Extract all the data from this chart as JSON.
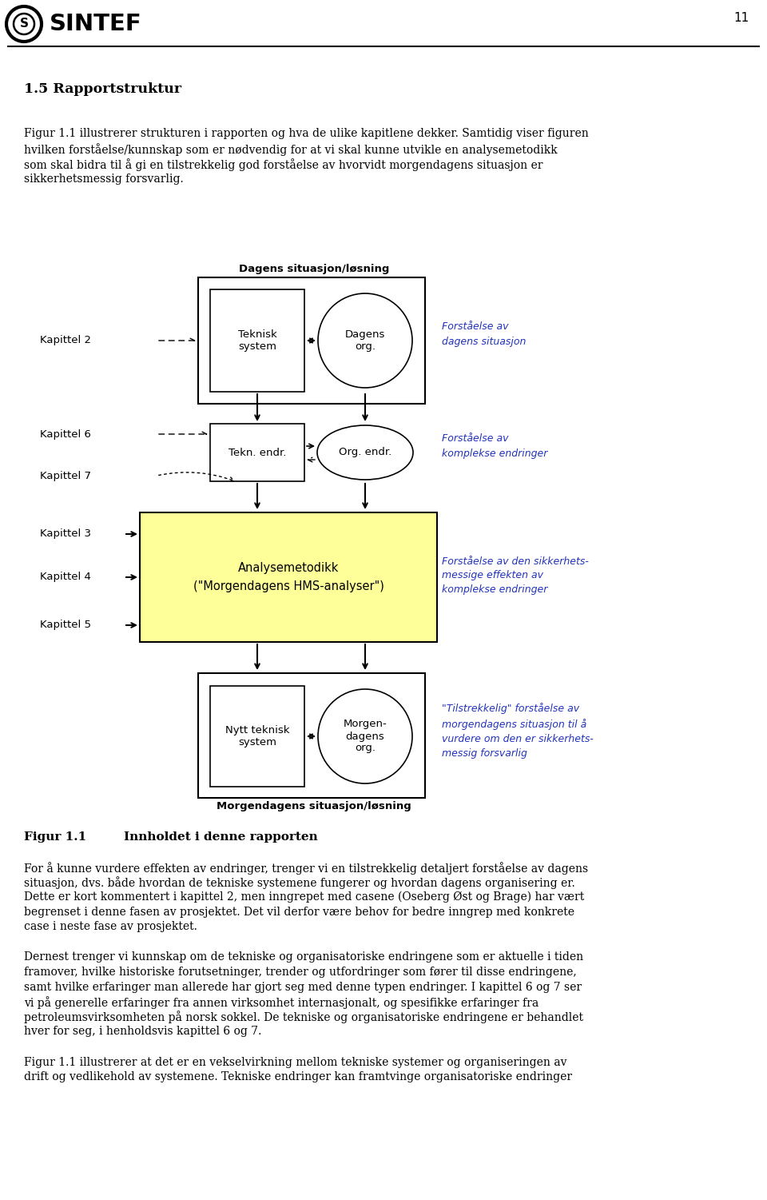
{
  "page_number": "11",
  "logo_text": "SINTEF",
  "section_title": "1.5 Rapportstruktur",
  "intro_line1": "Figur 1.1 illustrerer strukturen i rapporten og hva de ulike kapitlene dekker. Samtidig viser figuren",
  "intro_line2": "hvilken forståelse/kunnskap som er nødvendig for at vi skal kunne utvikle en analysemetodikk",
  "intro_line3": "som skal bidra til å gi en tilstrekkelig god forståelse av hvorvidt morgendagens situasjon er",
  "intro_line4": "sikkerhetsmessig forsvarlig.",
  "dagens_label": "Dagens situasjon/løsning",
  "morgendagens_label": "Morgendagens situasjon/løsning",
  "box1_text1": "Teknisk\nsystem",
  "box1_text2": "Dagens\norg.",
  "box2_text1": "Tekn. endr.",
  "box2_text2": "Org. endr.",
  "box3_text": "Analysemetodikk\n(\"Morgendagens HMS-analyser\")",
  "box4_text1": "Nytt teknisk\nsystem",
  "box4_text2": "Morgen-\ndagens\norg.",
  "kap2": "Kapittel 2",
  "kap3": "Kapittel 3",
  "kap4": "Kapittel 4",
  "kap5": "Kapittel 5",
  "kap6": "Kapittel 6",
  "kap7": "Kapittel 7",
  "label_right1": "Forståelse av\ndagens situasjon",
  "label_right2": "Forståelse av\nkomplekse endringer",
  "label_right3": "Forståelse av den sikkerhets-\nmessige effekten av\nkomplekse endringer",
  "label_right4": "\"Tilstrekkelig\" forståelse av\nmorgendagens situasjon til å\nvurdere om den er sikkerhets-\nmessig forsvarlig",
  "fig_caption_num": "Figur 1.1",
  "fig_caption_tab": "      ",
  "fig_caption_title": "Innholdet i denne rapporten",
  "body1_lines": [
    "For å kunne vurdere effekten av endringer, trenger vi en tilstrekkelig detaljert forståelse av dagens",
    "situasjon, dvs. både hvordan de tekniske systemene fungerer og hvordan dagens organisering er.",
    "Dette er kort kommentert i kapittel 2, men inngrepet med casene (Oseberg Øst og Brage) har vært",
    "begrenset i denne fasen av prosjektet. Det vil derfor være behov for bedre inngrep med konkrete",
    "case i neste fase av prosjektet."
  ],
  "body2_lines": [
    "Dernest trenger vi kunnskap om de tekniske og organisatoriske endringene som er aktuelle i tiden",
    "framover, hvilke historiske forutsetninger, trender og utfordringer som fører til disse endringene,",
    "samt hvilke erfaringer man allerede har gjort seg med denne typen endringer. I kapittel 6 og 7 ser",
    "vi på generelle erfaringer fra annen virksomhet internasjonalt, og spesifikke erfaringer fra",
    "petroleumsvirksomheten på norsk sokkel. De tekniske og organisatoriske endringene er behandlet",
    "hver for seg, i henholdsvis kapittel 6 og 7."
  ],
  "body3_lines": [
    "Figur 1.1 illustrerer at det er en vekselvirkning mellom tekniske systemer og organiseringen av",
    "drift og vedlikehold av systemene. Tekniske endringer kan framtvinge organisatoriske endringer"
  ],
  "bg_color": "#ffffff",
  "yellow_fill": "#ffff99",
  "annotation_color": "#2233bb"
}
